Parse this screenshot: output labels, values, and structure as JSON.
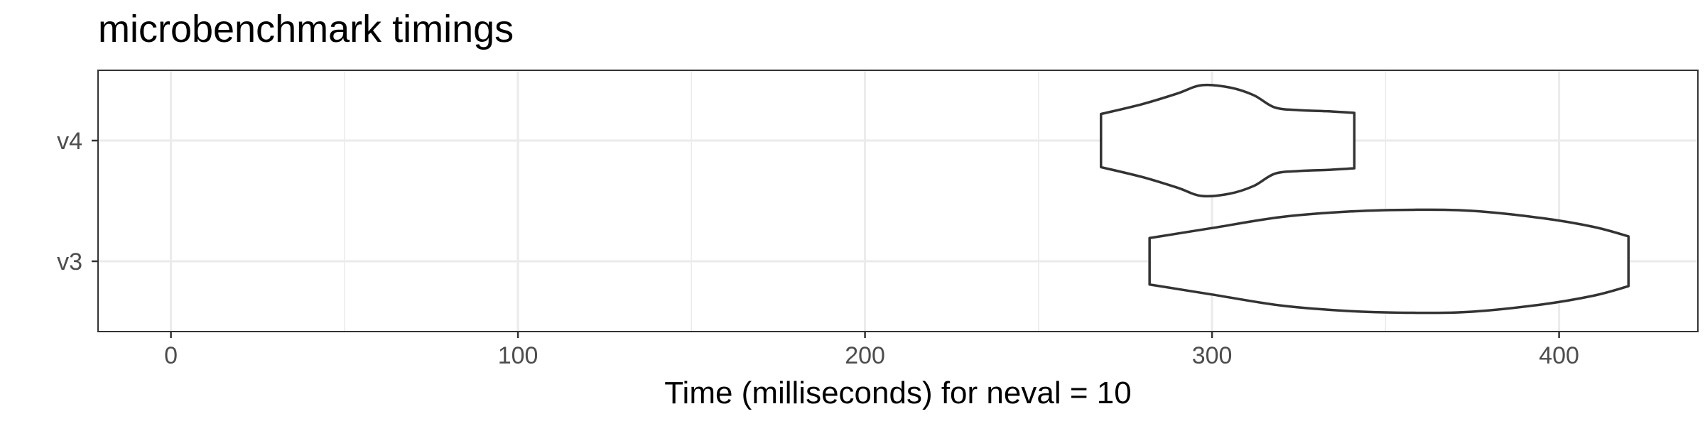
{
  "chart_data": {
    "type": "violin",
    "title": "microbenchmark timings",
    "xlabel": "Time (milliseconds) for neval = 10",
    "ylabel": "",
    "xlim": [
      -21,
      440
    ],
    "x_ticks": [
      0,
      100,
      200,
      300,
      400
    ],
    "x_tick_labels": [
      "0",
      "100",
      "200",
      "300",
      "400"
    ],
    "categories": [
      "v4",
      "v3"
    ],
    "grid": true,
    "colors": {
      "outline": "#333333",
      "grid": "#ebebeb",
      "panel_border": "#333333"
    },
    "series": [
      {
        "category": "v4",
        "min": 268,
        "max": 341,
        "density": [
          [
            268,
            0.48
          ],
          [
            280,
            0.66
          ],
          [
            290,
            0.85
          ],
          [
            297,
            1.0
          ],
          [
            305,
            0.96
          ],
          [
            312,
            0.82
          ],
          [
            318,
            0.6
          ],
          [
            325,
            0.55
          ],
          [
            333,
            0.53
          ],
          [
            341,
            0.5
          ]
        ]
      },
      {
        "category": "v3",
        "min": 282,
        "max": 420,
        "density": [
          [
            282,
            0.42
          ],
          [
            300,
            0.6
          ],
          [
            320,
            0.8
          ],
          [
            340,
            0.9
          ],
          [
            358,
            0.93
          ],
          [
            375,
            0.91
          ],
          [
            395,
            0.78
          ],
          [
            410,
            0.62
          ],
          [
            420,
            0.45
          ]
        ]
      }
    ]
  }
}
